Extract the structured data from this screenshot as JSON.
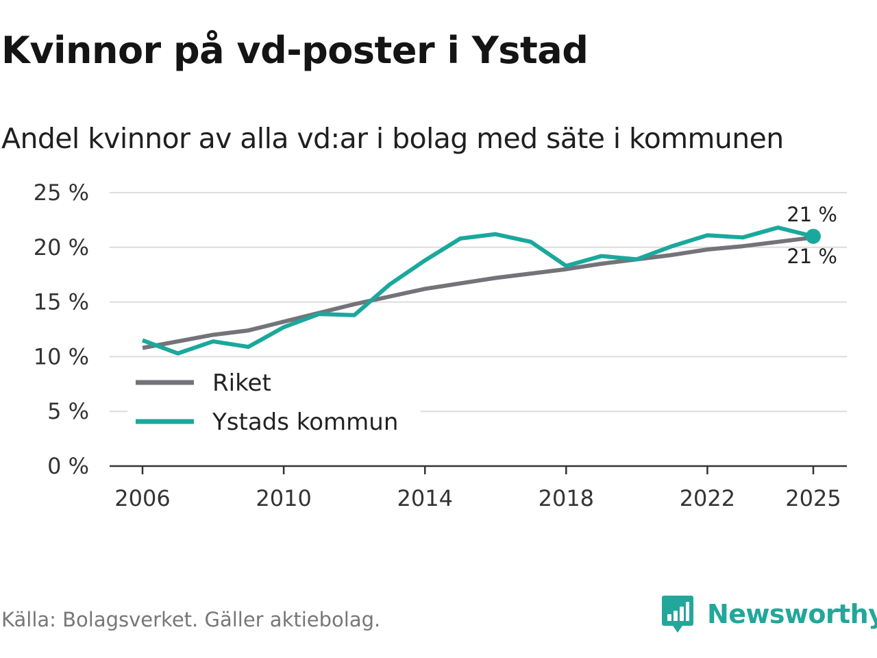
{
  "header": {
    "title": "Kvinnor på vd-poster i Ystad",
    "subtitle": "Andel kvinnor av alla vd:ar i bolag med säte i kommunen"
  },
  "chart_data": {
    "type": "line",
    "title": "Kvinnor på vd-poster i Ystad",
    "subtitle": "Andel kvinnor av alla vd:ar i bolag med säte i kommunen",
    "xlabel": "",
    "ylabel": "",
    "x": [
      2006,
      2007,
      2008,
      2009,
      2010,
      2011,
      2012,
      2013,
      2014,
      2015,
      2016,
      2017,
      2018,
      2019,
      2020,
      2021,
      2022,
      2023,
      2024,
      2025
    ],
    "x_ticks": [
      2006,
      2010,
      2014,
      2018,
      2022,
      2025
    ],
    "y_ticks": [
      0,
      5,
      10,
      15,
      20,
      25
    ],
    "y_tick_labels": [
      "0 %",
      "5 %",
      "10 %",
      "15 %",
      "20 %",
      "25 %"
    ],
    "ylim": [
      0,
      25
    ],
    "grid": "horizontal",
    "legend_position": "bottom-left",
    "series": [
      {
        "name": "Riket",
        "color": "#747379",
        "values": [
          10.8,
          11.4,
          12.0,
          12.4,
          13.2,
          14.0,
          14.8,
          15.5,
          16.2,
          16.7,
          17.2,
          17.6,
          18.0,
          18.5,
          18.9,
          19.3,
          19.8,
          20.1,
          20.5,
          20.9
        ]
      },
      {
        "name": "Ystads kommun",
        "color": "#1aa89c",
        "values": [
          11.5,
          10.3,
          11.4,
          10.9,
          12.7,
          13.9,
          13.8,
          16.6,
          18.8,
          20.8,
          21.2,
          20.5,
          18.3,
          19.2,
          18.9,
          20.1,
          21.1,
          20.9,
          21.8,
          21.0
        ]
      }
    ],
    "end_labels": [
      "21 %",
      "21 %"
    ]
  },
  "footer": {
    "source": "Källa: Bolagsverket. Gäller aktiebolag.",
    "brand": "Newsworthy"
  }
}
